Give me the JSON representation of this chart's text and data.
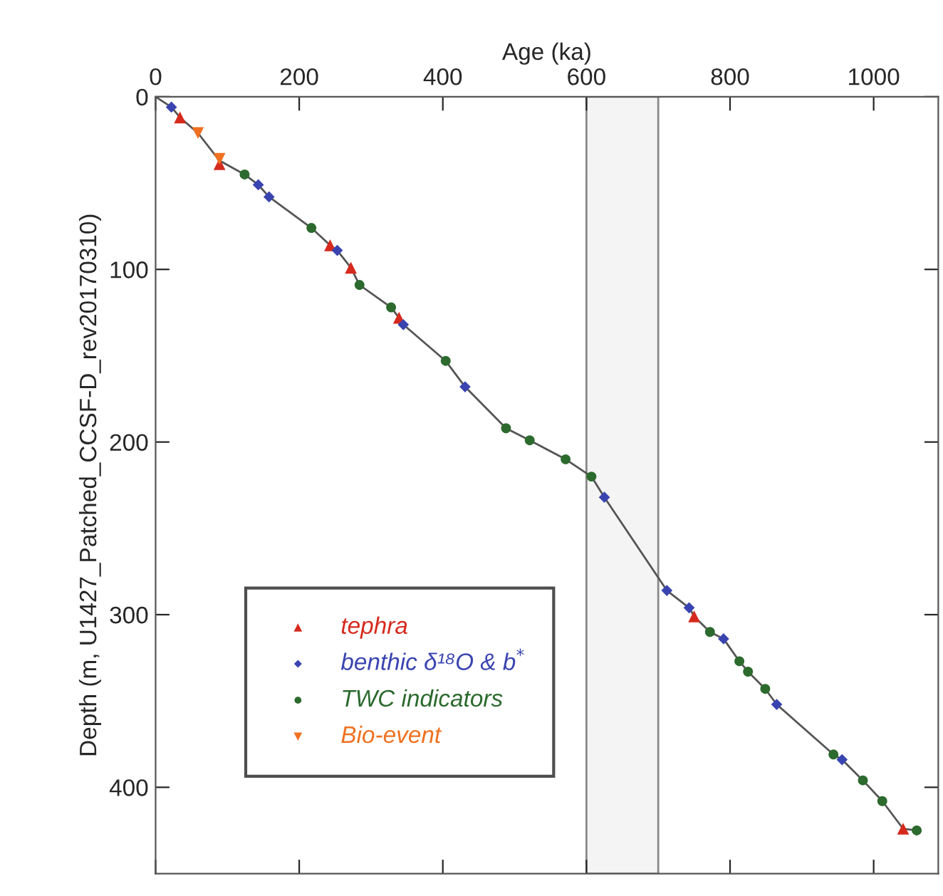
{
  "chart_data": {
    "type": "scatter",
    "xlabel": "Age (ka)",
    "ylabel": "Depth (m, U1427_Patched_CCSF-D_rev20170310)",
    "xlim": [
      0,
      1090
    ],
    "xticks": [
      0,
      200,
      400,
      600,
      800,
      1000
    ],
    "ylim": [
      450,
      0
    ],
    "yticks": [
      0,
      100,
      200,
      300,
      400
    ],
    "grid": false,
    "legend": "bottom left",
    "bands": [
      {
        "axis": "x",
        "from": 600,
        "to": 700,
        "color": "#f4f4f4"
      }
    ],
    "series": [
      {
        "type": "line",
        "color": "#555555",
        "marker": "none",
        "line_style": "solid",
        "x": [
          0,
          22,
          34,
          59,
          89,
          124,
          143,
          158,
          217,
          243,
          253,
          272,
          284,
          328,
          339,
          345,
          404,
          431,
          488,
          521,
          571,
          607,
          625,
          712,
          743,
          750,
          772,
          791,
          813,
          825,
          849,
          865,
          944,
          956,
          985,
          1012,
          1041,
          1060
        ],
        "values": [
          0,
          6,
          12,
          21,
          37,
          45,
          51,
          58,
          76,
          86,
          89,
          99,
          109,
          122,
          128,
          132,
          153,
          168,
          192,
          199,
          210,
          220,
          232,
          286,
          296,
          301,
          310,
          314,
          327,
          333,
          343,
          352,
          381,
          384,
          396,
          408,
          424,
          425
        ]
      },
      {
        "name": "tephra",
        "marker": "triangle",
        "color": "#d62a1e",
        "x": [
          34,
          89,
          243,
          272,
          339,
          750,
          1041
        ],
        "values": [
          12,
          39,
          86,
          99,
          128,
          301,
          424
        ]
      },
      {
        "name": "benthic δ¹⁸O & b$^{*}$",
        "marker": "diamond",
        "color": "#3a44b0",
        "x": [
          22,
          143,
          158,
          253,
          345,
          431,
          625,
          712,
          743,
          791,
          865,
          956
        ],
        "values": [
          6,
          51,
          58,
          89,
          132,
          168,
          232,
          286,
          296,
          314,
          352,
          384
        ]
      },
      {
        "name": "TWC indicators",
        "marker": "circle",
        "color": "#2c6a2e",
        "x": [
          124,
          217,
          284,
          328,
          404,
          488,
          521,
          571,
          607,
          772,
          813,
          825,
          849,
          944,
          985,
          1012,
          1060
        ],
        "values": [
          45,
          76,
          109,
          122,
          153,
          192,
          199,
          210,
          220,
          310,
          327,
          333,
          343,
          381,
          396,
          408,
          425
        ]
      },
      {
        "name": "Bio-event",
        "marker": "triangle_down",
        "color": "#f07020",
        "x": [
          59,
          89
        ],
        "values": [
          21,
          36
        ]
      }
    ]
  }
}
